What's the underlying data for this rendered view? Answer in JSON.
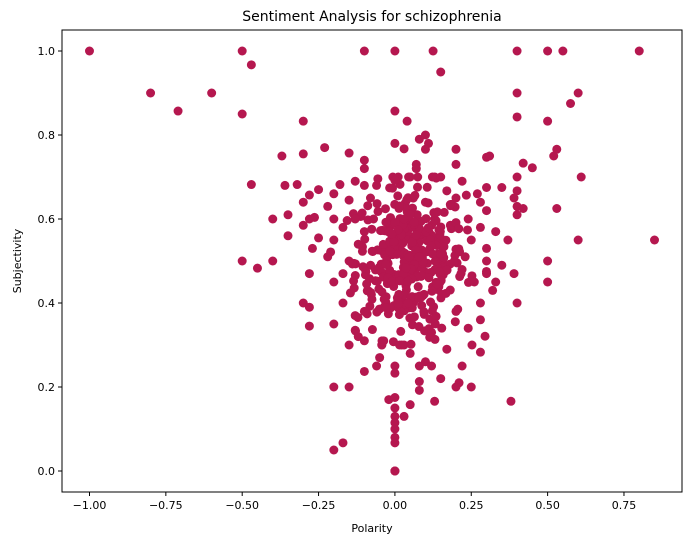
{
  "chart_data": {
    "type": "scatter",
    "title": "Sentiment Analysis for schizophrenia",
    "xlabel": "Polarity",
    "ylabel": "Subjectivity",
    "xlim": [
      -1.09,
      0.94
    ],
    "ylim": [
      -0.05,
      1.05
    ],
    "xticks": [
      -1.0,
      -0.75,
      -0.5,
      -0.25,
      0.0,
      0.25,
      0.5,
      0.75
    ],
    "xtick_labels": [
      "−1.00",
      "−0.75",
      "−0.50",
      "−0.25",
      "0.00",
      "0.25",
      "0.50",
      "0.75"
    ],
    "yticks": [
      0.0,
      0.2,
      0.4,
      0.6,
      0.8,
      1.0
    ],
    "ytick_labels": [
      "0.0",
      "0.2",
      "0.4",
      "0.6",
      "0.8",
      "1.0"
    ],
    "grid": false,
    "marker_color": "#b5174f",
    "series": [
      {
        "points": [
          [
            -1.0,
            1.0
          ],
          [
            -0.5,
            1.0
          ],
          [
            -0.47,
            0.967
          ],
          [
            -0.1,
            1.0
          ],
          [
            0.0,
            1.0
          ],
          [
            0.125,
            1.0
          ],
          [
            0.4,
            1.0
          ],
          [
            0.5,
            1.0
          ],
          [
            0.55,
            1.0
          ],
          [
            0.8,
            1.0
          ],
          [
            0.15,
            0.95
          ],
          [
            -0.8,
            0.9
          ],
          [
            -0.6,
            0.9
          ],
          [
            0.4,
            0.9
          ],
          [
            0.6,
            0.9
          ],
          [
            0.575,
            0.875
          ],
          [
            -0.71,
            0.857
          ],
          [
            -0.5,
            0.85
          ],
          [
            0.0,
            0.857
          ],
          [
            -0.3,
            0.833
          ],
          [
            0.04,
            0.833
          ],
          [
            0.4,
            0.843
          ],
          [
            0.5,
            0.833
          ],
          [
            0.1,
            0.8
          ],
          [
            0.08,
            0.79
          ],
          [
            0.11,
            0.78
          ],
          [
            0.0,
            0.78
          ],
          [
            0.53,
            0.766
          ],
          [
            0.52,
            0.75
          ],
          [
            -0.37,
            0.75
          ],
          [
            -0.3,
            0.755
          ],
          [
            -0.23,
            0.77
          ],
          [
            -0.15,
            0.757
          ],
          [
            -0.1,
            0.74
          ],
          [
            0.03,
            0.767
          ],
          [
            0.1,
            0.766
          ],
          [
            0.2,
            0.766
          ],
          [
            0.3,
            0.747
          ],
          [
            0.31,
            0.75
          ],
          [
            0.42,
            0.733
          ],
          [
            0.45,
            0.722
          ],
          [
            -0.1,
            0.72
          ],
          [
            0.07,
            0.73
          ],
          [
            0.07,
            0.72
          ],
          [
            0.2,
            0.73
          ],
          [
            0.4,
            0.7
          ],
          [
            0.61,
            0.7
          ],
          [
            -0.47,
            0.682
          ],
          [
            -0.36,
            0.68
          ],
          [
            -0.32,
            0.682
          ],
          [
            -0.25,
            0.67
          ],
          [
            -0.18,
            0.682
          ],
          [
            -0.1,
            0.68
          ],
          [
            0.0,
            0.692
          ],
          [
            0.05,
            0.7
          ],
          [
            0.15,
            0.7
          ],
          [
            0.22,
            0.69
          ],
          [
            0.3,
            0.675
          ],
          [
            0.35,
            0.675
          ],
          [
            0.4,
            0.667
          ],
          [
            -0.28,
            0.657
          ],
          [
            -0.2,
            0.66
          ],
          [
            -0.13,
            0.69
          ],
          [
            -0.06,
            0.68
          ],
          [
            0.17,
            0.667
          ],
          [
            0.27,
            0.66
          ],
          [
            0.39,
            0.65
          ],
          [
            -0.3,
            0.64
          ],
          [
            -0.22,
            0.63
          ],
          [
            -0.15,
            0.645
          ],
          [
            -0.08,
            0.65
          ],
          [
            0.1,
            0.64
          ],
          [
            0.2,
            0.65
          ],
          [
            0.28,
            0.64
          ],
          [
            0.4,
            0.63
          ],
          [
            0.42,
            0.625
          ],
          [
            0.53,
            0.625
          ],
          [
            -0.4,
            0.6
          ],
          [
            -0.35,
            0.61
          ],
          [
            -0.28,
            0.6
          ],
          [
            -0.2,
            0.6
          ],
          [
            -0.13,
            0.6
          ],
          [
            -0.07,
            0.6
          ],
          [
            0.03,
            0.6
          ],
          [
            0.13,
            0.6
          ],
          [
            0.24,
            0.6
          ],
          [
            0.3,
            0.62
          ],
          [
            0.4,
            0.61
          ],
          [
            -0.35,
            0.56
          ],
          [
            -0.3,
            0.585
          ],
          [
            -0.25,
            0.555
          ],
          [
            -0.17,
            0.58
          ],
          [
            -0.1,
            0.57
          ],
          [
            0.28,
            0.58
          ],
          [
            0.33,
            0.57
          ],
          [
            0.37,
            0.55
          ],
          [
            0.6,
            0.55
          ],
          [
            0.85,
            0.55
          ],
          [
            -0.2,
            0.55
          ],
          [
            -0.12,
            0.54
          ],
          [
            0.25,
            0.55
          ],
          [
            0.3,
            0.53
          ],
          [
            -0.27,
            0.53
          ],
          [
            -0.22,
            0.51
          ],
          [
            -0.15,
            0.5
          ],
          [
            0.23,
            0.51
          ],
          [
            0.3,
            0.5
          ],
          [
            0.35,
            0.49
          ],
          [
            -0.5,
            0.5
          ],
          [
            -0.45,
            0.483
          ],
          [
            -0.4,
            0.5
          ],
          [
            0.5,
            0.5
          ],
          [
            -0.28,
            0.47
          ],
          [
            -0.17,
            0.47
          ],
          [
            0.3,
            0.47
          ],
          [
            0.39,
            0.47
          ],
          [
            0.5,
            0.45
          ],
          [
            -0.2,
            0.45
          ],
          [
            0.26,
            0.45
          ],
          [
            0.33,
            0.45
          ],
          [
            -0.3,
            0.4
          ],
          [
            -0.28,
            0.39
          ],
          [
            0.28,
            0.4
          ],
          [
            0.32,
            0.43
          ],
          [
            0.4,
            0.4
          ],
          [
            -0.17,
            0.4
          ],
          [
            -0.1,
            0.38
          ],
          [
            -0.13,
            0.37
          ],
          [
            0.2,
            0.38
          ],
          [
            0.28,
            0.36
          ],
          [
            -0.28,
            0.345
          ],
          [
            -0.2,
            0.35
          ],
          [
            -0.13,
            0.335
          ],
          [
            -0.12,
            0.32
          ],
          [
            0.12,
            0.33
          ],
          [
            0.24,
            0.34
          ],
          [
            -0.15,
            0.3
          ],
          [
            -0.1,
            0.31
          ],
          [
            0.03,
            0.3
          ],
          [
            0.17,
            0.29
          ],
          [
            0.28,
            0.283
          ],
          [
            0.05,
            0.28
          ],
          [
            -0.05,
            0.27
          ],
          [
            -0.06,
            0.25
          ],
          [
            0.0,
            0.25
          ],
          [
            0.08,
            0.25
          ],
          [
            0.1,
            0.26
          ],
          [
            0.12,
            0.25
          ],
          [
            0.22,
            0.25
          ],
          [
            -0.1,
            0.237
          ],
          [
            0.0,
            0.233
          ],
          [
            0.15,
            0.22
          ],
          [
            0.08,
            0.213
          ],
          [
            0.21,
            0.21
          ],
          [
            -0.2,
            0.2
          ],
          [
            -0.15,
            0.2
          ],
          [
            0.08,
            0.192
          ],
          [
            0.2,
            0.2
          ],
          [
            0.25,
            0.2
          ],
          [
            -0.02,
            0.17
          ],
          [
            0.0,
            0.175
          ],
          [
            0.13,
            0.166
          ],
          [
            0.38,
            0.166
          ],
          [
            0.05,
            0.158
          ],
          [
            0.0,
            0.15
          ],
          [
            0.0,
            0.13
          ],
          [
            0.03,
            0.13
          ],
          [
            0.0,
            0.115
          ],
          [
            0.0,
            0.1
          ],
          [
            0.0,
            0.08
          ],
          [
            0.0,
            0.067
          ],
          [
            -0.17,
            0.067
          ],
          [
            -0.2,
            0.05
          ],
          [
            0.0,
            0.0
          ],
          [
            0.0,
            0.0
          ],
          [
            0.0,
            0.0
          ]
        ]
      }
    ],
    "central_cluster": {
      "center": [
        0.05,
        0.5
      ],
      "spread_x": 0.09,
      "spread_y": 0.09,
      "count": 380
    }
  }
}
